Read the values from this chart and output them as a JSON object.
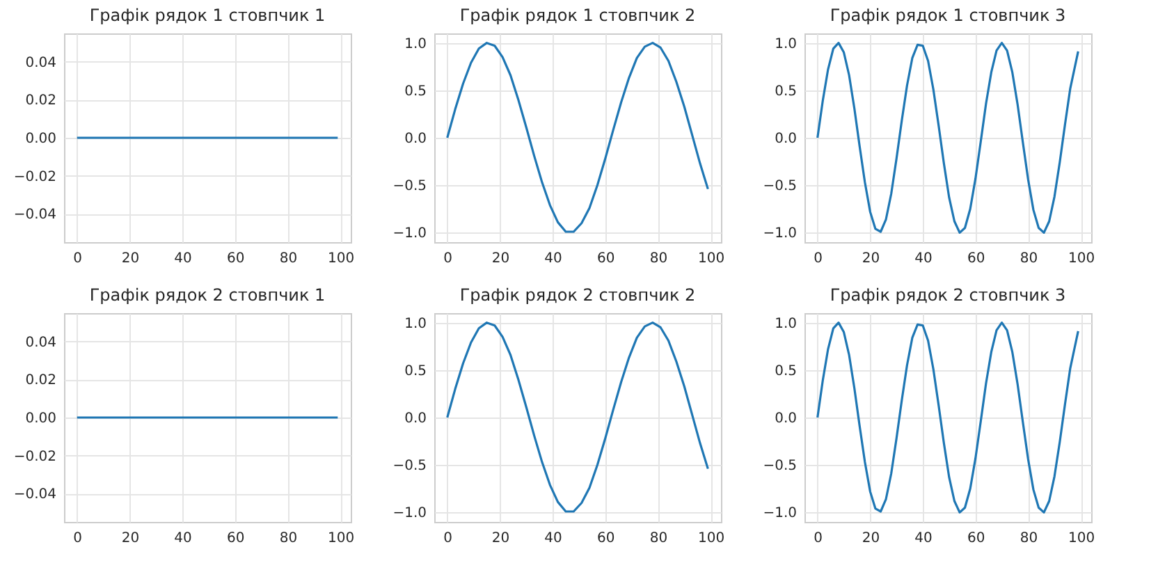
{
  "chart_data": [
    {
      "type": "line",
      "title": "Графік рядок 1 стовпчик 1",
      "x": [
        0,
        99
      ],
      "xlim": [
        -4.95,
        103.95
      ],
      "xticks": [
        0,
        20,
        40,
        60,
        80,
        100
      ],
      "ylim": [
        -0.055,
        0.055
      ],
      "yticks": [
        {
          "value": -0.04,
          "label": "−0.04"
        },
        {
          "value": -0.02,
          "label": "−0.02"
        },
        {
          "value": 0,
          "label": "0.00"
        },
        {
          "value": 0.02,
          "label": "0.02"
        },
        {
          "value": 0.04,
          "label": "0.04"
        }
      ],
      "grid": true,
      "series": [
        {
          "color": "#1f77b4",
          "values": [
            0,
            0
          ]
        }
      ]
    },
    {
      "type": "line",
      "title": "Графік рядок 1 стовпчик 2",
      "x": [
        0,
        3,
        6,
        9,
        12,
        15,
        18,
        21,
        24,
        27,
        30,
        33,
        36,
        39,
        42,
        45,
        48,
        51,
        54,
        57,
        60,
        63,
        66,
        69,
        72,
        75,
        78,
        81,
        84,
        87,
        90,
        93,
        96,
        99
      ],
      "xlim": [
        -4.95,
        103.95
      ],
      "xticks": [
        0,
        20,
        40,
        60,
        80,
        100
      ],
      "ylim": [
        -1.1,
        1.1
      ],
      "yticks": [
        {
          "value": -1,
          "label": "−1.0"
        },
        {
          "value": -0.5,
          "label": "−0.5"
        },
        {
          "value": 0,
          "label": "0.0"
        },
        {
          "value": 0.5,
          "label": "0.5"
        },
        {
          "value": 1,
          "label": "1.0"
        }
      ],
      "grid": true,
      "series": [
        {
          "color": "#1f77b4",
          "values": [
            0,
            0.3,
            0.57,
            0.79,
            0.94,
            1.0,
            0.97,
            0.85,
            0.66,
            0.4,
            0.11,
            -0.19,
            -0.47,
            -0.71,
            -0.89,
            -0.99,
            -0.99,
            -0.9,
            -0.74,
            -0.5,
            -0.22,
            0.08,
            0.37,
            0.63,
            0.84,
            0.96,
            1.0,
            0.95,
            0.81,
            0.59,
            0.33,
            0.03,
            -0.27,
            -0.54
          ]
        }
      ]
    },
    {
      "type": "line",
      "title": "Графік рядок 1 стовпчик 3",
      "x": [
        0,
        2,
        4,
        6,
        8,
        10,
        12,
        14,
        16,
        18,
        20,
        22,
        24,
        26,
        28,
        30,
        32,
        34,
        36,
        38,
        40,
        42,
        44,
        46,
        48,
        50,
        52,
        54,
        56,
        58,
        60,
        62,
        64,
        66,
        68,
        70,
        72,
        74,
        76,
        78,
        80,
        82,
        84,
        86,
        88,
        90,
        92,
        94,
        96,
        99
      ],
      "xlim": [
        -4.95,
        103.95
      ],
      "xticks": [
        0,
        20,
        40,
        60,
        80,
        100
      ],
      "ylim": [
        -1.1,
        1.1
      ],
      "yticks": [
        {
          "value": -1,
          "label": "−1.0"
        },
        {
          "value": -0.5,
          "label": "−0.5"
        },
        {
          "value": 0,
          "label": "0.0"
        },
        {
          "value": 0.5,
          "label": "0.5"
        },
        {
          "value": 1,
          "label": "1.0"
        }
      ],
      "grid": true,
      "series": [
        {
          "color": "#1f77b4",
          "values": [
            0,
            0.39,
            0.72,
            0.94,
            1.0,
            0.9,
            0.66,
            0.31,
            -0.09,
            -0.47,
            -0.78,
            -0.96,
            -0.99,
            -0.86,
            -0.59,
            -0.22,
            0.18,
            0.55,
            0.84,
            0.98,
            0.97,
            0.81,
            0.51,
            0.13,
            -0.27,
            -0.63,
            -0.88,
            -1.0,
            -0.95,
            -0.75,
            -0.43,
            -0.04,
            0.36,
            0.69,
            0.92,
            1.0,
            0.92,
            0.69,
            0.35,
            -0.05,
            -0.44,
            -0.76,
            -0.95,
            -1.0,
            -0.88,
            -0.62,
            -0.26,
            0.14,
            0.52,
            0.91
          ]
        }
      ]
    },
    {
      "type": "line",
      "title": "Графік рядок 2 стовпчик 1",
      "x": [
        0,
        99
      ],
      "xlim": [
        -4.95,
        103.95
      ],
      "xticks": [
        0,
        20,
        40,
        60,
        80,
        100
      ],
      "ylim": [
        -0.055,
        0.055
      ],
      "yticks": [
        {
          "value": -0.04,
          "label": "−0.04"
        },
        {
          "value": -0.02,
          "label": "−0.02"
        },
        {
          "value": 0,
          "label": "0.00"
        },
        {
          "value": 0.02,
          "label": "0.02"
        },
        {
          "value": 0.04,
          "label": "0.04"
        }
      ],
      "grid": true,
      "series": [
        {
          "color": "#1f77b4",
          "values": [
            0,
            0
          ]
        }
      ]
    },
    {
      "type": "line",
      "title": "Графік рядок 2 стовпчик 2",
      "x": [
        0,
        3,
        6,
        9,
        12,
        15,
        18,
        21,
        24,
        27,
        30,
        33,
        36,
        39,
        42,
        45,
        48,
        51,
        54,
        57,
        60,
        63,
        66,
        69,
        72,
        75,
        78,
        81,
        84,
        87,
        90,
        93,
        96,
        99
      ],
      "xlim": [
        -4.95,
        103.95
      ],
      "xticks": [
        0,
        20,
        40,
        60,
        80,
        100
      ],
      "ylim": [
        -1.1,
        1.1
      ],
      "yticks": [
        {
          "value": -1,
          "label": "−1.0"
        },
        {
          "value": -0.5,
          "label": "−0.5"
        },
        {
          "value": 0,
          "label": "0.0"
        },
        {
          "value": 0.5,
          "label": "0.5"
        },
        {
          "value": 1,
          "label": "1.0"
        }
      ],
      "grid": true,
      "series": [
        {
          "color": "#1f77b4",
          "values": [
            0,
            0.3,
            0.57,
            0.79,
            0.94,
            1.0,
            0.97,
            0.85,
            0.66,
            0.4,
            0.11,
            -0.19,
            -0.47,
            -0.71,
            -0.89,
            -0.99,
            -0.99,
            -0.9,
            -0.74,
            -0.5,
            -0.22,
            0.08,
            0.37,
            0.63,
            0.84,
            0.96,
            1.0,
            0.95,
            0.81,
            0.59,
            0.33,
            0.03,
            -0.27,
            -0.54
          ]
        }
      ]
    },
    {
      "type": "line",
      "title": "Графік рядок 2 стовпчик 3",
      "x": [
        0,
        2,
        4,
        6,
        8,
        10,
        12,
        14,
        16,
        18,
        20,
        22,
        24,
        26,
        28,
        30,
        32,
        34,
        36,
        38,
        40,
        42,
        44,
        46,
        48,
        50,
        52,
        54,
        56,
        58,
        60,
        62,
        64,
        66,
        68,
        70,
        72,
        74,
        76,
        78,
        80,
        82,
        84,
        86,
        88,
        90,
        92,
        94,
        96,
        99
      ],
      "xlim": [
        -4.95,
        103.95
      ],
      "xticks": [
        0,
        20,
        40,
        60,
        80,
        100
      ],
      "ylim": [
        -1.1,
        1.1
      ],
      "yticks": [
        {
          "value": -1,
          "label": "−1.0"
        },
        {
          "value": -0.5,
          "label": "−0.5"
        },
        {
          "value": 0,
          "label": "0.0"
        },
        {
          "value": 0.5,
          "label": "0.5"
        },
        {
          "value": 1,
          "label": "1.0"
        }
      ],
      "grid": true,
      "series": [
        {
          "color": "#1f77b4",
          "values": [
            0,
            0.39,
            0.72,
            0.94,
            1.0,
            0.9,
            0.66,
            0.31,
            -0.09,
            -0.47,
            -0.78,
            -0.96,
            -0.99,
            -0.86,
            -0.59,
            -0.22,
            0.18,
            0.55,
            0.84,
            0.98,
            0.97,
            0.81,
            0.51,
            0.13,
            -0.27,
            -0.63,
            -0.88,
            -1.0,
            -0.95,
            -0.75,
            -0.43,
            -0.04,
            0.36,
            0.69,
            0.92,
            1.0,
            0.92,
            0.69,
            0.35,
            -0.05,
            -0.44,
            -0.76,
            -0.95,
            -1.0,
            -0.88,
            -0.62,
            -0.26,
            0.14,
            0.52,
            0.91
          ]
        }
      ]
    }
  ]
}
